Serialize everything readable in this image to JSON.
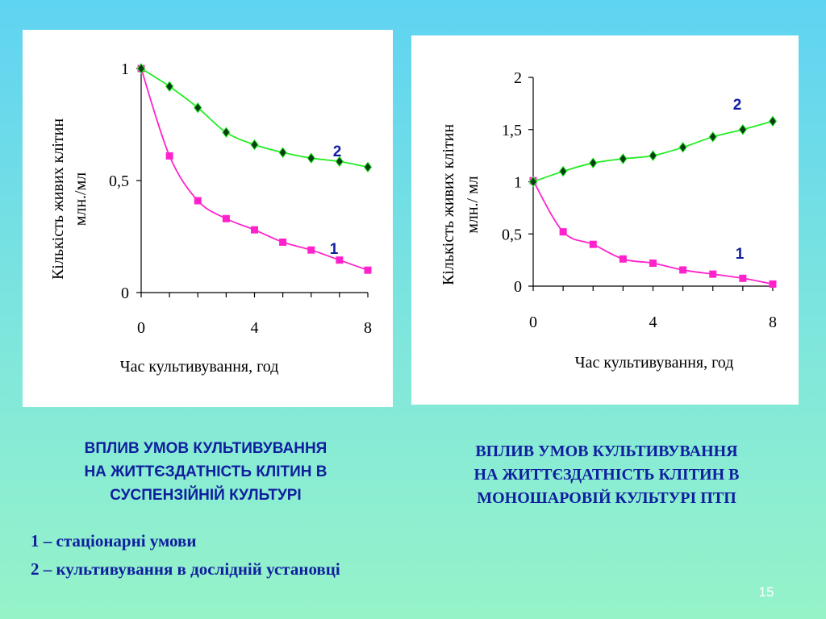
{
  "chart_data": [
    {
      "type": "line",
      "xlabel": "Час культивування, год",
      "ylabel": "Кількість живих клітин млн./мл",
      "ylabel_lines": [
        "Кількість живих клітин",
        "млн./мл"
      ],
      "x_ticks": [
        "0",
        "4",
        "8"
      ],
      "y_ticks": [
        "0",
        "0,5",
        "1"
      ],
      "y_tick_values": [
        0,
        0.5,
        1
      ],
      "x_tick_values": [
        0,
        4,
        8
      ],
      "xlim": [
        0,
        8
      ],
      "ylim": [
        0,
        1
      ],
      "grid": false,
      "x": [
        0,
        1,
        2,
        3,
        4,
        5,
        6,
        7,
        8
      ],
      "series": [
        {
          "name": "1",
          "color": "#ff22cc",
          "marker": "square",
          "values": [
            1.0,
            0.61,
            0.41,
            0.33,
            0.28,
            0.225,
            0.19,
            0.145,
            0.1
          ]
        },
        {
          "name": "2",
          "color": "#22ee22",
          "marker": "diamond",
          "values": [
            1.0,
            0.92,
            0.825,
            0.715,
            0.66,
            0.625,
            0.6,
            0.585,
            0.56
          ]
        }
      ]
    },
    {
      "type": "line",
      "xlabel": "Час культивування, год",
      "ylabel": "Кількість живих клітин млн./ мл",
      "ylabel_lines": [
        "Кількість живих клітин",
        "млн./ мл"
      ],
      "x_ticks": [
        "0",
        "4",
        "8"
      ],
      "y_ticks": [
        "0",
        "0,5",
        "1",
        "1,5",
        "2"
      ],
      "y_tick_values": [
        0,
        0.5,
        1,
        1.5,
        2
      ],
      "x_tick_values": [
        0,
        4,
        8
      ],
      "xlim": [
        0,
        8
      ],
      "ylim": [
        0,
        2
      ],
      "grid": false,
      "x": [
        0,
        1,
        2,
        3,
        4,
        5,
        6,
        7,
        8
      ],
      "series": [
        {
          "name": "1",
          "color": "#ff22cc",
          "marker": "square",
          "values": [
            1.01,
            0.52,
            0.4,
            0.26,
            0.22,
            0.155,
            0.115,
            0.075,
            0.02
          ]
        },
        {
          "name": "2",
          "color": "#22ee22",
          "marker": "diamond",
          "values": [
            1.0,
            1.1,
            1.18,
            1.22,
            1.25,
            1.33,
            1.43,
            1.5,
            1.58
          ]
        }
      ]
    }
  ],
  "captions": {
    "left": [
      "ВПЛИВ УМОВ КУЛЬТИВУВАННЯ",
      "НА ЖИТТЄЗДАТНІСТЬ КЛІТИН В",
      "СУСПЕНЗІЙНІЙ КУЛЬТУРІ"
    ],
    "right": [
      "ВПЛИВ УМОВ КУЛЬТИВУВАННЯ",
      "НА ЖИТТЄЗДАТНІСТЬ КЛІТИН В",
      "МОНОШАРОВІЙ КУЛЬТУРІ ПТП"
    ]
  },
  "legend": [
    "1 – стаціонарні умови",
    "2 – культивування в дослідній установці"
  ],
  "page_number": "15"
}
